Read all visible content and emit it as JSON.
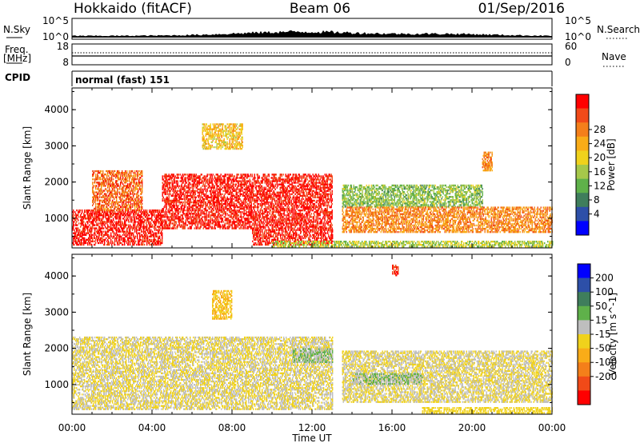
{
  "header": {
    "station": "Hokkaido (fitACF)",
    "beam": "Beam 06",
    "date": "01/Sep/2016"
  },
  "panels": {
    "nsky": {
      "left_label": "N.Sky",
      "right_label": "N.Search",
      "left_ticks": [
        "10^5",
        "10^0"
      ],
      "right_ticks": [
        "10^5",
        "10^0"
      ]
    },
    "freq": {
      "left_label_1": "Freq.",
      "left_label_2": "[MHz]",
      "right_label": "Nave",
      "left_ticks": [
        "18",
        "8"
      ],
      "right_ticks": [
        "60",
        "0"
      ]
    },
    "cpid": {
      "label": "CPID",
      "value": "normal (fast) 151"
    }
  },
  "chart_data": [
    {
      "type": "heatmap",
      "title": "",
      "xlabel": "",
      "ylabel": "Slant Range [km]",
      "x_tick_labels": [
        "00:00",
        "04:00",
        "08:00",
        "12:00",
        "16:00",
        "20:00",
        "00:00"
      ],
      "y_tick_labels": [
        "1000",
        "2000",
        "3000",
        "4000"
      ],
      "xlim": [
        0,
        24
      ],
      "ylim": [
        180,
        4600
      ],
      "colorbar": {
        "label": "Power [dB]",
        "tick_labels": [
          "4",
          "8",
          "12",
          "16",
          "20",
          "24",
          "28"
        ],
        "range": [
          0,
          30
        ],
        "colors": [
          "#0000ff",
          "#2d4fa8",
          "#3f7e5c",
          "#5fb14a",
          "#a6c84a",
          "#f0d21c",
          "#f9ac18",
          "#f47f1a",
          "#f14a18",
          "#ff0000"
        ]
      },
      "regions": [
        {
          "t0": 0.0,
          "t1": 4.5,
          "r0": 250,
          "r1": 1200,
          "value": 28
        },
        {
          "t0": 1.0,
          "t1": 3.5,
          "r0": 1200,
          "r1": 2300,
          "value": 24
        },
        {
          "t0": 4.5,
          "t1": 13.0,
          "r0": 700,
          "r1": 2200,
          "value": 28
        },
        {
          "t0": 6.5,
          "t1": 8.5,
          "r0": 2900,
          "r1": 3600,
          "value": 18
        },
        {
          "t0": 9.0,
          "t1": 13.0,
          "r0": 250,
          "r1": 700,
          "value": 28
        },
        {
          "t0": 13.5,
          "t1": 20.5,
          "r0": 1300,
          "r1": 1900,
          "value": 12
        },
        {
          "t0": 13.5,
          "t1": 24.0,
          "r0": 600,
          "r1": 1300,
          "value": 22
        },
        {
          "t0": 20.5,
          "t1": 21.0,
          "r0": 2300,
          "r1": 2800,
          "value": 22
        },
        {
          "t0": 10.0,
          "t1": 24.0,
          "r0": 200,
          "r1": 350,
          "value": 14
        }
      ]
    },
    {
      "type": "heatmap",
      "title": "",
      "xlabel": "Time UT",
      "ylabel": "Slant Range [km]",
      "x_tick_labels": [
        "00:00",
        "04:00",
        "08:00",
        "12:00",
        "16:00",
        "20:00",
        "00:00"
      ],
      "y_tick_labels": [
        "1000",
        "2000",
        "3000",
        "4000"
      ],
      "xlim": [
        0,
        24
      ],
      "ylim": [
        180,
        4600
      ],
      "colorbar": {
        "label": "Velocity [m s^-1]",
        "tick_labels": [
          "200",
          "100",
          "50",
          "15",
          "-15",
          "-50",
          "-100",
          "-200"
        ],
        "range": [
          -250,
          250
        ],
        "colors": [
          "#0000ff",
          "#2d4fa8",
          "#3f7e5c",
          "#5fb14a",
          "#bebebe",
          "#f0d21c",
          "#f9ac18",
          "#f47f1a",
          "#f14a18",
          "#ff0000"
        ]
      },
      "regions": [
        {
          "t0": 0.0,
          "t1": 13.0,
          "r0": 300,
          "r1": 2300,
          "value": 0
        },
        {
          "t0": 7.0,
          "t1": 8.0,
          "r0": 2800,
          "r1": 3600,
          "value": -50
        },
        {
          "t0": 11.0,
          "t1": 13.0,
          "r0": 1600,
          "r1": 2000,
          "value": 50
        },
        {
          "t0": 13.5,
          "t1": 24.0,
          "r0": 500,
          "r1": 1900,
          "value": 0
        },
        {
          "t0": 14.0,
          "t1": 17.5,
          "r0": 1000,
          "r1": 1300,
          "value": 50
        },
        {
          "t0": 17.5,
          "t1": 24.0,
          "r0": 200,
          "r1": 350,
          "value": -30
        },
        {
          "t0": 16.0,
          "t1": 16.3,
          "r0": 4000,
          "r1": 4300,
          "value": -200
        }
      ]
    }
  ]
}
